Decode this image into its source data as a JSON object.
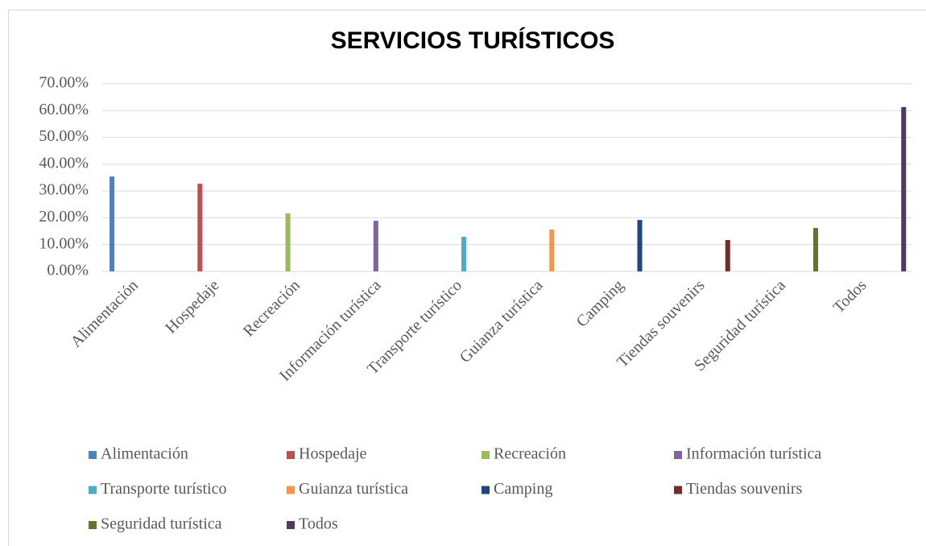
{
  "chart_data": {
    "type": "bar",
    "title": "SERVICIOS TURÍSTICOS",
    "categories": [
      "Alimentación",
      "Hospedaje",
      "Recreación",
      "Información turística",
      "Transporte turístico",
      "Guianza turística",
      "Camping",
      "Tiendas souvenirs",
      "Seguridad turística",
      "Todos"
    ],
    "series": [
      {
        "name": "Alimentación",
        "color": "#4f81bd",
        "values": [
          35.4,
          null,
          null,
          null,
          null,
          null,
          null,
          null,
          null,
          null
        ]
      },
      {
        "name": "Hospedaje",
        "color": "#c0504d",
        "values": [
          null,
          32.7,
          null,
          null,
          null,
          null,
          null,
          null,
          null,
          null
        ]
      },
      {
        "name": "Recreación",
        "color": "#9bbb59",
        "values": [
          null,
          null,
          21.6,
          null,
          null,
          null,
          null,
          null,
          null,
          null
        ]
      },
      {
        "name": "Información turística",
        "color": "#8064a2",
        "values": [
          null,
          null,
          null,
          18.9,
          null,
          null,
          null,
          null,
          null,
          null
        ]
      },
      {
        "name": "Transporte turístico",
        "color": "#4bacc6",
        "values": [
          null,
          null,
          null,
          null,
          12.9,
          null,
          null,
          null,
          null,
          null
        ]
      },
      {
        "name": "Guianza turística",
        "color": "#f79646",
        "values": [
          null,
          null,
          null,
          null,
          null,
          15.6,
          null,
          null,
          null,
          null
        ]
      },
      {
        "name": "Camping",
        "color": "#1f497d",
        "values": [
          null,
          null,
          null,
          null,
          null,
          null,
          19.2,
          null,
          null,
          null
        ]
      },
      {
        "name": "Tiendas souvenirs",
        "color": "#772c2a",
        "values": [
          null,
          null,
          null,
          null,
          null,
          null,
          null,
          11.7,
          null,
          null
        ]
      },
      {
        "name": "Seguridad turística",
        "color": "#5f7530",
        "values": [
          null,
          null,
          null,
          null,
          null,
          null,
          null,
          null,
          16.2,
          null
        ]
      },
      {
        "name": "Todos",
        "color": "#4d3b62",
        "values": [
          null,
          null,
          null,
          null,
          null,
          null,
          null,
          null,
          null,
          61.3
        ]
      }
    ],
    "ylim": [
      0,
      70
    ],
    "yticks": [
      {
        "value": 0,
        "label": "0.00%"
      },
      {
        "value": 10,
        "label": "10.00%"
      },
      {
        "value": 20,
        "label": "20.00%"
      },
      {
        "value": 30,
        "label": "30.00%"
      },
      {
        "value": 40,
        "label": "40.00%"
      },
      {
        "value": 50,
        "label": "50.00%"
      },
      {
        "value": 60,
        "label": "60.00%"
      },
      {
        "value": 70,
        "label": "70.00%"
      }
    ],
    "grid": true,
    "legend": "bottom"
  }
}
